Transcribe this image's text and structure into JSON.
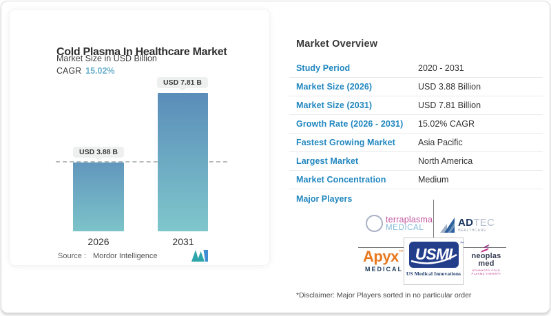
{
  "card": {
    "title": "Cold Plasma In Healthcare Market",
    "subtitle": "Market Size in USD Billion",
    "cagr_label": "CAGR",
    "cagr_value": "15.02%",
    "source_label": "Source :",
    "source_value": "Mordor Intelligence"
  },
  "chart_data": {
    "type": "bar",
    "title": "Cold Plasma In Healthcare Market",
    "ylabel": "Market Size in USD Billion",
    "categories": [
      "2026",
      "2031"
    ],
    "values": [
      3.88,
      7.81
    ],
    "value_labels": [
      "USD 3.88 B",
      "USD 7.81 B"
    ],
    "cagr_percent": 15.02,
    "reference_line": {
      "at": 3.88,
      "style": "dashed"
    },
    "grid": "off",
    "legend": "none",
    "bar_gradient_top": "#5a8db9",
    "bar_gradient_bottom": "#7fc7cc"
  },
  "overview": {
    "title": "Market Overview",
    "rows": [
      {
        "label": "Study Period",
        "value": "2020 - 2031"
      },
      {
        "label": "Market Size (2026)",
        "value": "USD 3.88 Billion"
      },
      {
        "label": "Market Size (2031)",
        "value": "USD 7.81 Billion"
      },
      {
        "label": "Growth Rate (2026 - 2031)",
        "value": "15.02% CAGR"
      },
      {
        "label": "Fastest Growing Market",
        "value": "Asia Pacific"
      },
      {
        "label": "Largest Market",
        "value": "North America"
      },
      {
        "label": "Market Concentration",
        "value": "Medium"
      }
    ],
    "major_players_label": "Major Players",
    "disclaimer": "*Disclaimer: Major Players sorted in no particular order"
  },
  "players": {
    "terraplasma": {
      "name": "terraplasma",
      "sub": "MEDICAL"
    },
    "adtec": {
      "name_bold": "AD",
      "name_light": "TEC",
      "sub": "HEALTHCARE"
    },
    "apyx": {
      "name": "Apyx",
      "tm": "™",
      "sub": "MEDICAL"
    },
    "usmi": {
      "name": "USMI",
      "tm": "™",
      "sub": "US Medical Innovations"
    },
    "neoplas": {
      "name": "neoplas med",
      "sub": "ADVANCED COLD PLASMA THERAPY"
    }
  },
  "icons": {
    "mordor_logo": "mordor-intelligence-m-mark"
  },
  "colors": {
    "accent_blue": "#2187c0",
    "cagr_teal": "#6ab0cc",
    "bar_top": "#5a8db9",
    "bar_bottom": "#7fc7cc",
    "pill_bg": "#eef0f0"
  }
}
